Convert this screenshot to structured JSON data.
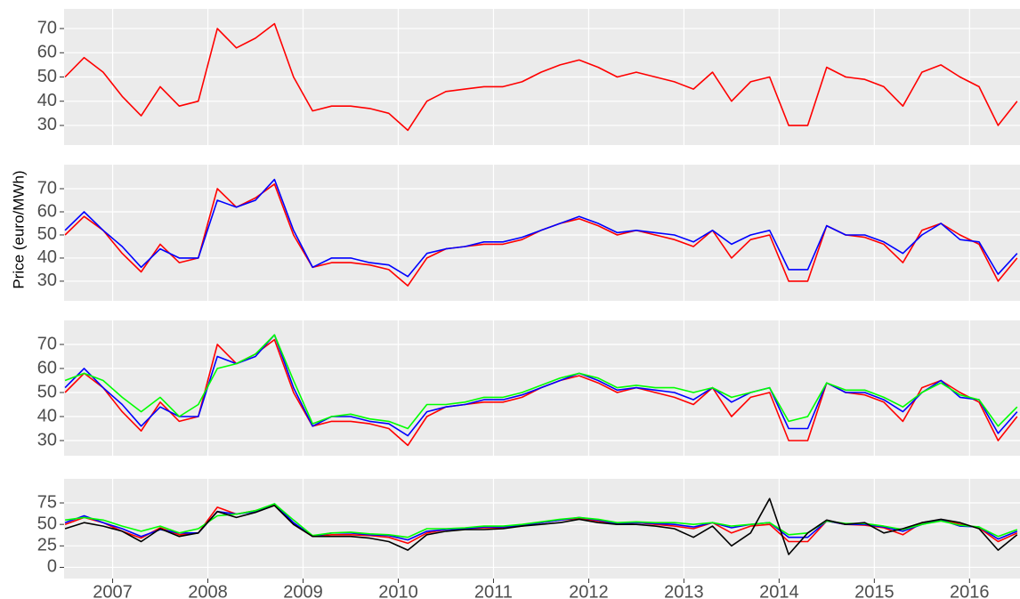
{
  "y_label": "Price (euro/MWh)",
  "chart_data": [
    {
      "type": "line",
      "xlim": [
        2006.49,
        2016.53
      ],
      "xticks": [
        2007,
        2008,
        2009,
        2010,
        2011,
        2012,
        2013,
        2014,
        2015,
        2016
      ],
      "ylim": [
        21.9,
        78.1
      ],
      "yticks": [
        30,
        40,
        50,
        60,
        70
      ],
      "grid": true,
      "x": [
        2006.5,
        2006.7,
        2006.9,
        2007.1,
        2007.3,
        2007.5,
        2007.7,
        2007.9,
        2008.1,
        2008.3,
        2008.5,
        2008.7,
        2008.9,
        2009.1,
        2009.3,
        2009.5,
        2009.7,
        2009.9,
        2010.1,
        2010.3,
        2010.5,
        2010.7,
        2010.9,
        2011.1,
        2011.3,
        2011.5,
        2011.7,
        2011.9,
        2012.1,
        2012.3,
        2012.5,
        2012.7,
        2012.9,
        2013.1,
        2013.3,
        2013.5,
        2013.7,
        2013.9,
        2014.1,
        2014.3,
        2014.5,
        2014.7,
        2014.9,
        2015.1,
        2015.3,
        2015.5,
        2015.7,
        2015.9,
        2016.1,
        2016.3,
        2016.5
      ],
      "series": [
        {
          "color": "#ff0000",
          "values": [
            50,
            58,
            52,
            42,
            34,
            46,
            38,
            40,
            70,
            62,
            66,
            72,
            50,
            36,
            38,
            38,
            37,
            35,
            28,
            40,
            44,
            45,
            46,
            46,
            48,
            52,
            55,
            57,
            54,
            50,
            52,
            50,
            48,
            45,
            52,
            40,
            48,
            50,
            30,
            30,
            54,
            50,
            49,
            46,
            38,
            52,
            55,
            50,
            46,
            30,
            40
          ]
        }
      ]
    },
    {
      "type": "line",
      "xlim": [
        2006.49,
        2016.53
      ],
      "xticks": [
        2007,
        2008,
        2009,
        2010,
        2011,
        2012,
        2013,
        2014,
        2015,
        2016
      ],
      "ylim": [
        21.5,
        80.4
      ],
      "yticks": [
        30,
        40,
        50,
        60,
        70
      ],
      "grid": true,
      "x": [
        2006.5,
        2006.7,
        2006.9,
        2007.1,
        2007.3,
        2007.5,
        2007.7,
        2007.9,
        2008.1,
        2008.3,
        2008.5,
        2008.7,
        2008.9,
        2009.1,
        2009.3,
        2009.5,
        2009.7,
        2009.9,
        2010.1,
        2010.3,
        2010.5,
        2010.7,
        2010.9,
        2011.1,
        2011.3,
        2011.5,
        2011.7,
        2011.9,
        2012.1,
        2012.3,
        2012.5,
        2012.7,
        2012.9,
        2013.1,
        2013.3,
        2013.5,
        2013.7,
        2013.9,
        2014.1,
        2014.3,
        2014.5,
        2014.7,
        2014.9,
        2015.1,
        2015.3,
        2015.5,
        2015.7,
        2015.9,
        2016.1,
        2016.3,
        2016.5
      ],
      "series": [
        {
          "color": "#ff0000",
          "values": [
            50,
            58,
            52,
            42,
            34,
            46,
            38,
            40,
            70,
            62,
            66,
            72,
            50,
            36,
            38,
            38,
            37,
            35,
            28,
            40,
            44,
            45,
            46,
            46,
            48,
            52,
            55,
            57,
            54,
            50,
            52,
            50,
            48,
            45,
            52,
            40,
            48,
            50,
            30,
            30,
            54,
            50,
            49,
            46,
            38,
            52,
            55,
            50,
            46,
            30,
            40
          ]
        },
        {
          "color": "#0000ff",
          "values": [
            52,
            60,
            52,
            45,
            36,
            44,
            40,
            40,
            65,
            62,
            65,
            74,
            52,
            36,
            40,
            40,
            38,
            37,
            32,
            42,
            44,
            45,
            47,
            47,
            49,
            52,
            55,
            58,
            55,
            51,
            52,
            51,
            50,
            47,
            52,
            46,
            50,
            52,
            35,
            35,
            54,
            50,
            50,
            47,
            42,
            50,
            55,
            48,
            47,
            33,
            42
          ]
        }
      ]
    },
    {
      "type": "line",
      "xlim": [
        2006.49,
        2016.53
      ],
      "xticks": [
        2007,
        2008,
        2009,
        2010,
        2011,
        2012,
        2013,
        2014,
        2015,
        2016
      ],
      "ylim": [
        23.7,
        80
      ],
      "yticks": [
        30,
        40,
        50,
        60,
        70
      ],
      "grid": true,
      "x": [
        2006.5,
        2006.7,
        2006.9,
        2007.1,
        2007.3,
        2007.5,
        2007.7,
        2007.9,
        2008.1,
        2008.3,
        2008.5,
        2008.7,
        2008.9,
        2009.1,
        2009.3,
        2009.5,
        2009.7,
        2009.9,
        2010.1,
        2010.3,
        2010.5,
        2010.7,
        2010.9,
        2011.1,
        2011.3,
        2011.5,
        2011.7,
        2011.9,
        2012.1,
        2012.3,
        2012.5,
        2012.7,
        2012.9,
        2013.1,
        2013.3,
        2013.5,
        2013.7,
        2013.9,
        2014.1,
        2014.3,
        2014.5,
        2014.7,
        2014.9,
        2015.1,
        2015.3,
        2015.5,
        2015.7,
        2015.9,
        2016.1,
        2016.3,
        2016.5
      ],
      "series": [
        {
          "color": "#ff0000",
          "values": [
            50,
            58,
            52,
            42,
            34,
            46,
            38,
            40,
            70,
            62,
            66,
            72,
            50,
            36,
            38,
            38,
            37,
            35,
            28,
            40,
            44,
            45,
            46,
            46,
            48,
            52,
            55,
            57,
            54,
            50,
            52,
            50,
            48,
            45,
            52,
            40,
            48,
            50,
            30,
            30,
            54,
            50,
            49,
            46,
            38,
            52,
            55,
            50,
            46,
            30,
            40
          ]
        },
        {
          "color": "#0000ff",
          "values": [
            52,
            60,
            52,
            45,
            36,
            44,
            40,
            40,
            65,
            62,
            65,
            74,
            52,
            36,
            40,
            40,
            38,
            37,
            32,
            42,
            44,
            45,
            47,
            47,
            49,
            52,
            55,
            58,
            55,
            51,
            52,
            51,
            50,
            47,
            52,
            46,
            50,
            52,
            35,
            35,
            54,
            50,
            50,
            47,
            42,
            50,
            55,
            48,
            47,
            33,
            42
          ]
        },
        {
          "color": "#00ff00",
          "values": [
            55,
            58,
            55,
            48,
            42,
            48,
            40,
            45,
            60,
            62,
            66,
            74,
            55,
            37,
            40,
            41,
            39,
            38,
            35,
            45,
            45,
            46,
            48,
            48,
            50,
            53,
            56,
            58,
            56,
            52,
            53,
            52,
            52,
            50,
            52,
            48,
            50,
            52,
            38,
            40,
            54,
            51,
            51,
            48,
            44,
            50,
            54,
            49,
            47,
            36,
            44
          ]
        }
      ]
    },
    {
      "type": "line",
      "xlim": [
        2006.49,
        2016.53
      ],
      "xticks": [
        2007,
        2008,
        2009,
        2010,
        2011,
        2012,
        2013,
        2014,
        2015,
        2016
      ],
      "ylim": [
        -13,
        103
      ],
      "yticks": [
        0,
        25,
        50,
        75
      ],
      "grid": true,
      "x": [
        2006.5,
        2006.7,
        2006.9,
        2007.1,
        2007.3,
        2007.5,
        2007.7,
        2007.9,
        2008.1,
        2008.3,
        2008.5,
        2008.7,
        2008.9,
        2009.1,
        2009.3,
        2009.5,
        2009.7,
        2009.9,
        2010.1,
        2010.3,
        2010.5,
        2010.7,
        2010.9,
        2011.1,
        2011.3,
        2011.5,
        2011.7,
        2011.9,
        2012.1,
        2012.3,
        2012.5,
        2012.7,
        2012.9,
        2013.1,
        2013.3,
        2013.5,
        2013.7,
        2013.9,
        2014.1,
        2014.3,
        2014.5,
        2014.7,
        2014.9,
        2015.1,
        2015.3,
        2015.5,
        2015.7,
        2015.9,
        2016.1,
        2016.3,
        2016.5
      ],
      "series": [
        {
          "color": "#ff0000",
          "values": [
            50,
            58,
            52,
            42,
            34,
            46,
            38,
            40,
            70,
            62,
            66,
            72,
            50,
            36,
            38,
            38,
            37,
            35,
            28,
            40,
            44,
            45,
            46,
            46,
            48,
            52,
            55,
            57,
            54,
            50,
            52,
            50,
            48,
            45,
            52,
            40,
            48,
            50,
            30,
            30,
            54,
            50,
            49,
            46,
            38,
            52,
            55,
            50,
            46,
            30,
            40
          ]
        },
        {
          "color": "#0000ff",
          "values": [
            52,
            60,
            52,
            45,
            36,
            44,
            40,
            40,
            65,
            62,
            65,
            74,
            52,
            36,
            40,
            40,
            38,
            37,
            32,
            42,
            44,
            45,
            47,
            47,
            49,
            52,
            55,
            58,
            55,
            51,
            52,
            51,
            50,
            47,
            52,
            46,
            50,
            52,
            35,
            35,
            54,
            50,
            50,
            47,
            42,
            50,
            55,
            48,
            47,
            33,
            42
          ]
        },
        {
          "color": "#00ff00",
          "values": [
            55,
            58,
            55,
            48,
            42,
            48,
            40,
            45,
            60,
            62,
            66,
            74,
            55,
            37,
            40,
            41,
            39,
            38,
            35,
            45,
            45,
            46,
            48,
            48,
            50,
            53,
            56,
            58,
            56,
            52,
            53,
            52,
            52,
            50,
            52,
            48,
            50,
            52,
            38,
            40,
            54,
            51,
            51,
            48,
            44,
            50,
            54,
            49,
            47,
            36,
            44
          ]
        },
        {
          "color": "#000000",
          "values": [
            45,
            52,
            48,
            42,
            30,
            45,
            36,
            40,
            65,
            58,
            64,
            72,
            50,
            36,
            36,
            36,
            34,
            30,
            20,
            38,
            42,
            44,
            44,
            45,
            48,
            50,
            52,
            56,
            52,
            50,
            50,
            48,
            45,
            35,
            48,
            25,
            40,
            80,
            15,
            40,
            55,
            50,
            52,
            40,
            45,
            52,
            56,
            52,
            45,
            20,
            38
          ]
        }
      ]
    }
  ]
}
